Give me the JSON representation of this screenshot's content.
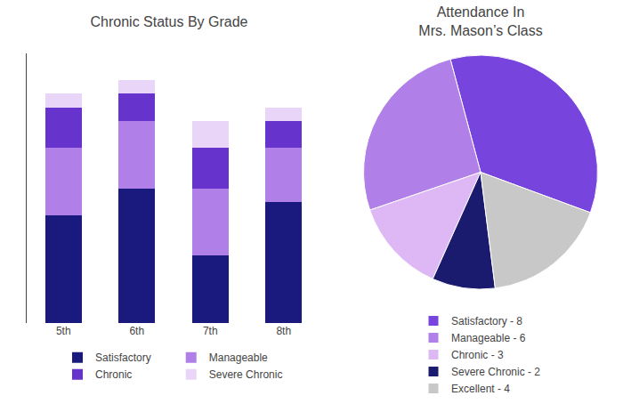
{
  "chart_data": [
    {
      "type": "bar",
      "title": "Chronic Status By Grade",
      "categories": [
        "5th",
        "6th",
        "7th",
        "8th"
      ],
      "series": [
        {
          "name": "Satisfactory",
          "color": "#1a1a7e",
          "values": [
            4,
            5,
            2.5,
            4.5
          ]
        },
        {
          "name": "Manageable",
          "color": "#b07fe8",
          "values": [
            2.5,
            2.5,
            2.5,
            2
          ]
        },
        {
          "name": "Chronic",
          "color": "#6633cc",
          "values": [
            1.5,
            1,
            1.5,
            1
          ]
        },
        {
          "name": "Severe Chronic",
          "color": "#e8d5f8",
          "values": [
            0.5,
            0.5,
            1,
            0.5
          ]
        }
      ],
      "stacked": true,
      "ylim": [
        0,
        10
      ],
      "tick_labels": "x",
      "grid": false,
      "legend": "bottom"
    },
    {
      "type": "pie",
      "title": "Attendance In\nMrs. Mason’s Class",
      "categories": [
        "Satisfactory - 8",
        "Manageable - 6",
        "Chronic - 3",
        "Severe Chronic - 2",
        "Excellent - 4"
      ],
      "values": [
        8,
        6,
        3,
        2,
        4
      ],
      "colors": [
        "#7744dd",
        "#b07fe8",
        "#ddb8f5",
        "#1a1a6e",
        "#c8c8c8"
      ],
      "legend": "bottom"
    }
  ]
}
